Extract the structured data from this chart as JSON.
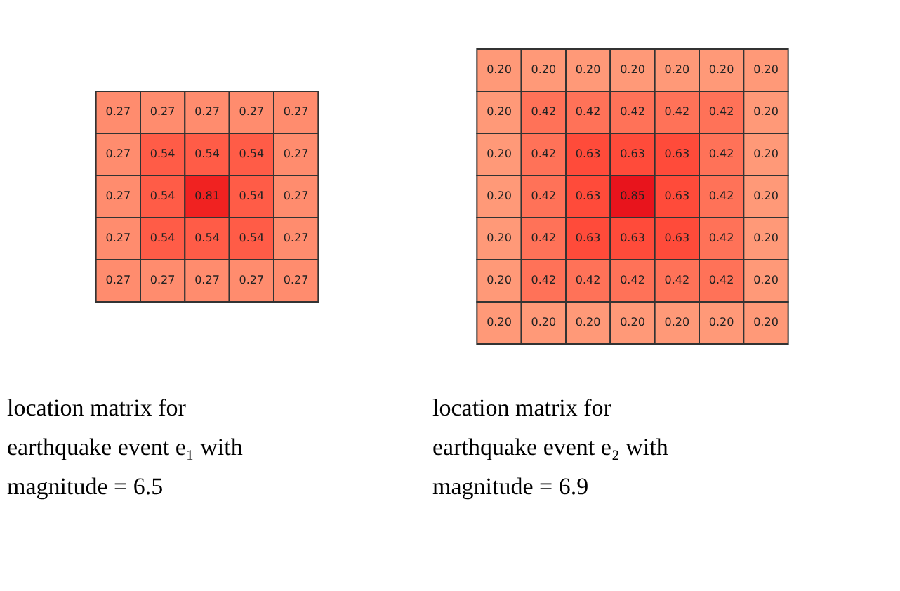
{
  "chart_data": [
    {
      "type": "heatmap",
      "title": "location matrix for earthquake event e₁ with magnitude = 6.5",
      "categories": [
        null,
        null,
        null,
        null,
        null
      ],
      "y_categories": [
        null,
        null,
        null,
        null,
        null
      ],
      "data_labels": true,
      "cells": [
        [
          0.27,
          0.27,
          0.27,
          0.27,
          0.27
        ],
        [
          0.27,
          0.54,
          0.54,
          0.54,
          0.27
        ],
        [
          0.27,
          0.54,
          0.81,
          0.54,
          0.27
        ],
        [
          0.27,
          0.54,
          0.54,
          0.54,
          0.27
        ],
        [
          0.27,
          0.27,
          0.27,
          0.27,
          0.27
        ]
      ]
    },
    {
      "type": "heatmap",
      "title": "location matrix for earthquake event e₂ with magnitude = 6.9",
      "categories": [
        null,
        null,
        null,
        null,
        null,
        null,
        null
      ],
      "y_categories": [
        null,
        null,
        null,
        null,
        null,
        null,
        null
      ],
      "cell_labels": [
        [
          "0.20",
          "0.20",
          "0.20",
          "0.20",
          "0.20",
          "0.20",
          "0.20"
        ],
        [
          "0.20",
          "0.42",
          "0.42",
          "0.42",
          "0.42",
          "0.42",
          "0.20"
        ],
        [
          "0.20",
          "0.42",
          "0.63",
          "0.63",
          "0.63",
          "0.42",
          "0.20"
        ],
        [
          "0.20",
          "0.42",
          "0.63",
          "0.85",
          "0.63",
          "0.42",
          "0.20"
        ],
        [
          "0.20",
          "0.42",
          "0.63",
          "0.63",
          "0.63",
          "0.42",
          "0.20"
        ],
        [
          "0.20",
          "0.42",
          "0.42",
          "0.42",
          "0.42",
          "0.42",
          "0.20"
        ],
        [
          "0.20",
          "0.20",
          "0.20",
          "0.20",
          "0.20",
          "0.20",
          "0.20"
        ]
      ],
      "cells": [
        [
          0.2,
          0.2,
          0.2,
          0.2,
          0.2,
          0.2,
          0.2
        ],
        [
          0.2,
          0.42,
          0.42,
          0.42,
          0.42,
          0.42,
          0.2
        ],
        [
          0.2,
          0.42,
          0.63,
          0.63,
          0.63,
          0.42,
          0.2
        ],
        [
          0.2,
          0.42,
          0.63,
          0.85,
          0.63,
          0.42,
          0.2
        ],
        [
          0.2,
          0.42,
          0.63,
          0.63,
          0.63,
          0.42,
          0.2
        ],
        [
          0.2,
          0.42,
          0.42,
          0.42,
          0.42,
          0.42,
          0.2
        ],
        [
          0.2,
          0.2,
          0.2,
          0.2,
          0.2,
          0.2,
          0.2
        ]
      ]
    }
  ]
}
